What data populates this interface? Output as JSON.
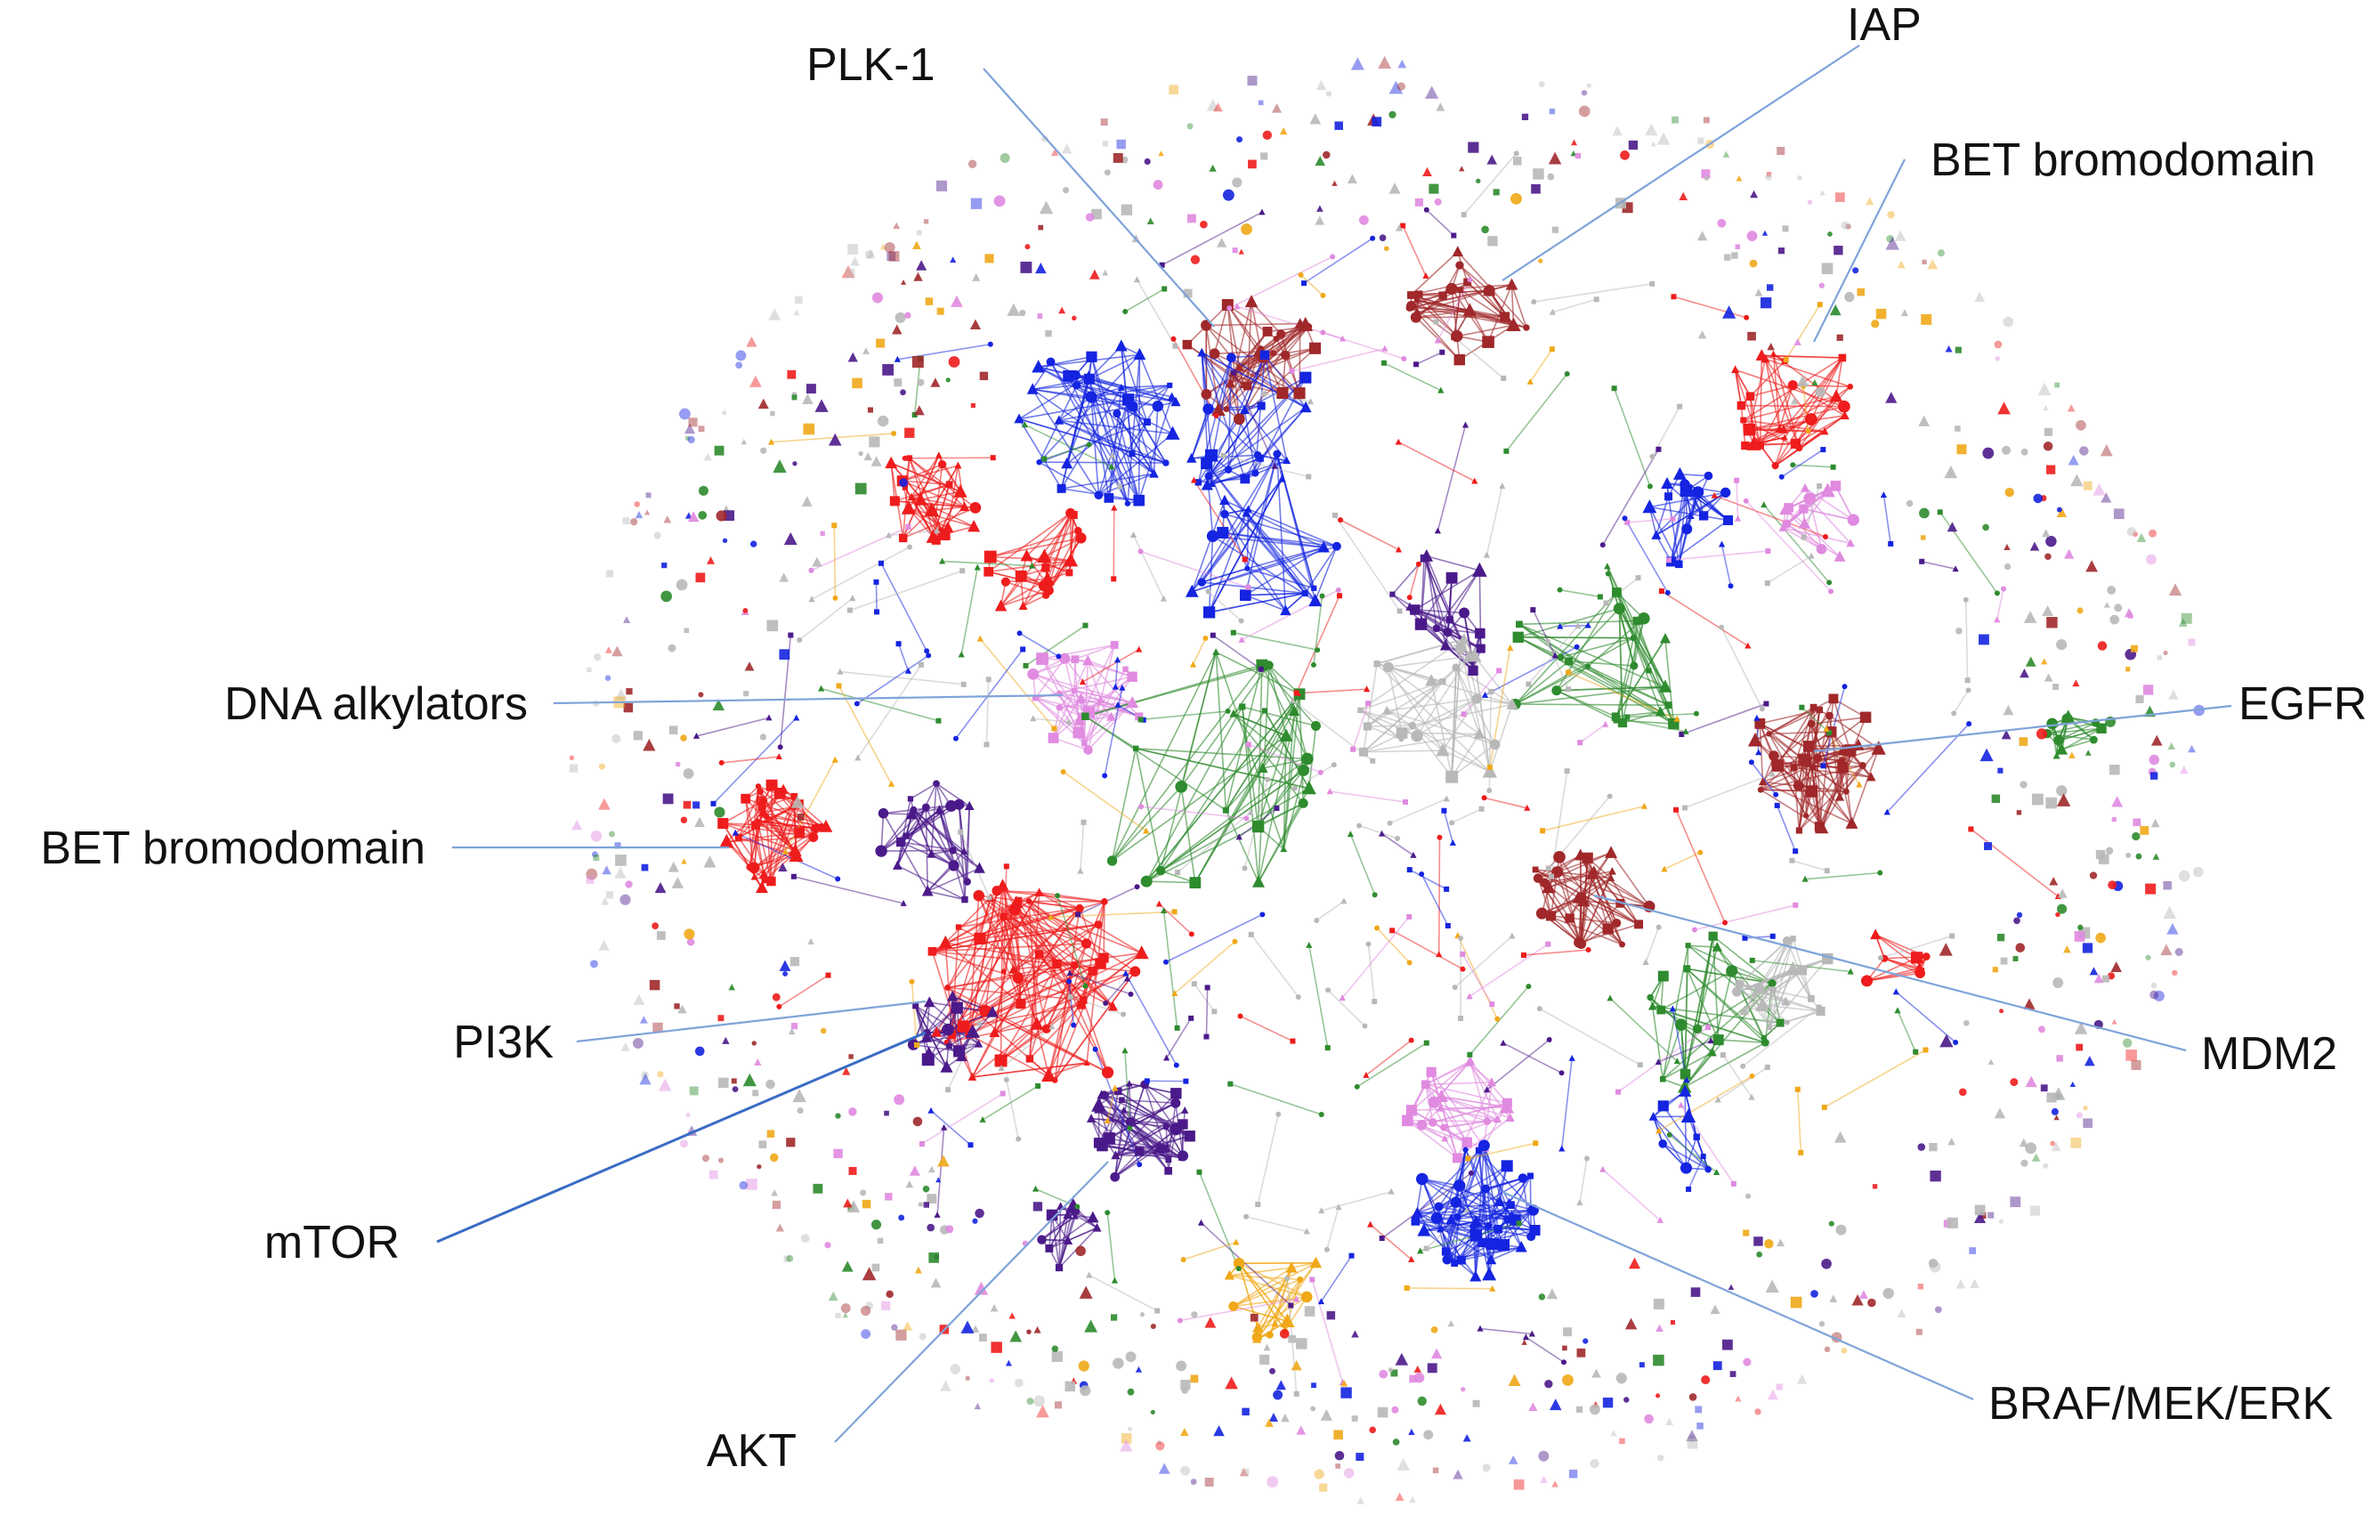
{
  "labels": {
    "plk1": "PLK-1",
    "iap": "IAP",
    "bet_top": "BET bromodomain",
    "dna": "DNA alkylators",
    "egfr": "EGFR",
    "bet_left": "BET bromodomain",
    "pi3k": "PI3K",
    "mdm2": "MDM2",
    "mtor": "mTOR",
    "akt": "AKT",
    "braf": "BRAF/MEK/ERK"
  },
  "colors": {
    "brown": "#a0282a",
    "red": "#ee1c1c",
    "blue": "#1424e0",
    "purple": "#4b1a8a",
    "pink": "#e08ae0",
    "green": "#2e8b2e",
    "gold": "#f0a818",
    "gray": "#b8b8b8",
    "leader": "#7ea3d9"
  }
}
